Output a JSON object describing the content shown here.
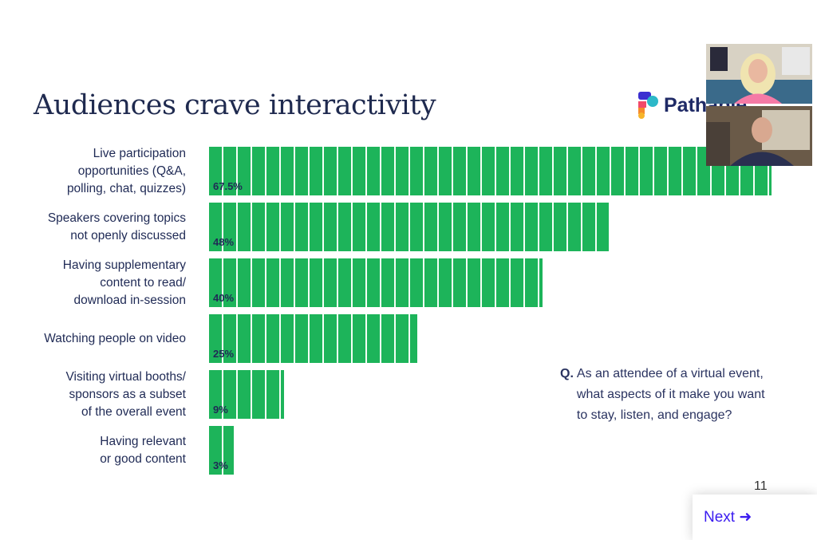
{
  "slide": {
    "title": "Audiences crave interactivity",
    "logo_text": "Pathable",
    "page_number": "11",
    "question_prefix": "Q.",
    "question_lines": [
      "As an attendee of a virtual event,",
      "what aspects of it make you want",
      "to stay, listen, and engage?"
    ]
  },
  "navigation": {
    "next_label": "Next",
    "next_icon": "arrow-right-icon"
  },
  "video_tiles": [
    {
      "name": "participant-1"
    },
    {
      "name": "participant-2"
    }
  ],
  "colors": {
    "bar": "#1db45a",
    "text": "#1f2a55",
    "next": "#3b1cf0"
  },
  "chart_data": {
    "type": "bar",
    "orientation": "horizontal",
    "categories": [
      [
        "Live participation",
        "opportunities (Q&A,",
        "polling, chat, quizzes)"
      ],
      [
        "Speakers covering topics",
        "not openly discussed"
      ],
      [
        "Having supplementary",
        "content to read/",
        "download in-session"
      ],
      [
        "Watching people on video"
      ],
      [
        "Visiting virtual booths/",
        "sponsors as a subset",
        "of the overall event"
      ],
      [
        "Having relevant",
        "or good content"
      ]
    ],
    "values": [
      67.5,
      48,
      40,
      25,
      9,
      3
    ],
    "value_labels": [
      "67.5%",
      "48%",
      "40%",
      "25%",
      "9%",
      "3%"
    ],
    "xlim": [
      0,
      67.5
    ]
  }
}
